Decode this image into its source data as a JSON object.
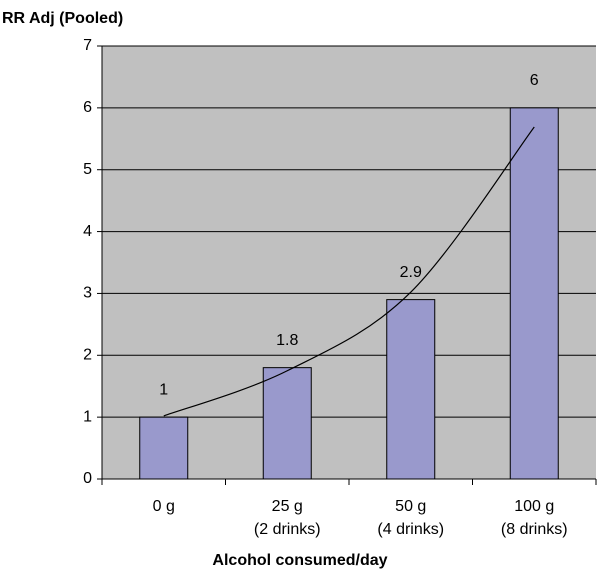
{
  "chart_data": {
    "type": "bar",
    "title": "RR Adj (Pooled)",
    "x_label": "Alcohol consumed/day",
    "categories": [
      "0 g",
      "25 g\n(2 drinks)",
      "50 g\n(4 drinks)",
      "100 g\n(8 drinks)"
    ],
    "values": [
      1,
      1.8,
      2.9,
      6
    ],
    "color": "#9999cc",
    "trend": {
      "values": [
        1.02,
        1.75,
        3.02,
        5.69
      ],
      "color": "#000000"
    },
    "ylim": [
      0,
      7
    ],
    "yticks": [
      0,
      1,
      2,
      3,
      4,
      5,
      6,
      7
    ],
    "grid": true,
    "plot_background": "#c0c0c0"
  }
}
